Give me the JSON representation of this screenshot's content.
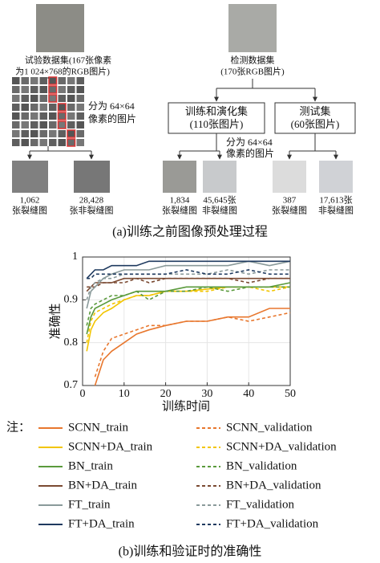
{
  "diagram": {
    "left_dataset": [
      "试验数据集(167张像素",
      "为1 024×768的RGB图片)"
    ],
    "left_split": [
      "分为 64×64",
      "像素的图片"
    ],
    "left_crack": [
      "1,062",
      "张裂缝图"
    ],
    "left_noncrack": [
      "28,428",
      "张非裂缝图"
    ],
    "right_dataset": [
      "检测数据集",
      "(170张RGB图片)"
    ],
    "train_box": [
      "训练和演化集",
      "(110张图片)"
    ],
    "test_box": [
      "测试集",
      "(60张图片)"
    ],
    "right_split": [
      "分为 64×64",
      "像素的图片"
    ],
    "train_crack": [
      "1,834",
      "张裂缝图"
    ],
    "train_noncrack": [
      "45,645张",
      "非裂缝图"
    ],
    "test_crack": [
      "387",
      "张裂缝图"
    ],
    "test_noncrack": [
      "17,613张",
      "非裂缝图"
    ],
    "caption": "(a)训练之前图像预处理过程"
  },
  "chart_data": {
    "type": "line",
    "xlabel": "训练时间",
    "ylabel": "准确性",
    "legend_title": "注：",
    "caption": "(b)训练和验证时的准确性",
    "x": [
      1,
      2,
      3,
      5,
      7,
      10,
      13,
      16,
      20,
      25,
      30,
      35,
      40,
      45,
      50
    ],
    "xlim": [
      0,
      50
    ],
    "xticks": [
      0,
      10,
      20,
      30,
      40,
      50
    ],
    "ylim": [
      0.7,
      1
    ],
    "yticks": [
      0.7,
      0.8,
      0.9,
      1
    ],
    "grid": true,
    "series": [
      {
        "name": "SCNN_train",
        "color": "#e8772e",
        "dashed": false,
        "values": [
          null,
          null,
          0.7,
          0.76,
          0.78,
          0.8,
          0.82,
          0.83,
          0.84,
          0.85,
          0.85,
          0.86,
          0.86,
          0.88,
          0.88
        ]
      },
      {
        "name": "SCNN_validation",
        "color": "#e8772e",
        "dashed": true,
        "values": [
          null,
          null,
          0.72,
          0.78,
          0.81,
          0.82,
          0.83,
          0.84,
          0.84,
          0.85,
          0.85,
          0.86,
          0.85,
          0.86,
          0.87
        ]
      },
      {
        "name": "SCNN+DA_train",
        "color": "#f2c500",
        "dashed": false,
        "values": [
          0.78,
          0.83,
          0.85,
          0.87,
          0.88,
          0.9,
          0.91,
          0.91,
          0.92,
          0.92,
          0.925,
          0.93,
          0.93,
          0.93,
          0.93
        ]
      },
      {
        "name": "SCNN+DA_validation",
        "color": "#f2c500",
        "dashed": true,
        "values": [
          0.8,
          0.85,
          0.87,
          0.88,
          0.89,
          0.9,
          0.91,
          0.91,
          0.92,
          0.92,
          0.92,
          0.93,
          0.93,
          0.92,
          0.93
        ]
      },
      {
        "name": "BN_train",
        "color": "#5a9a3c",
        "dashed": false,
        "values": [
          0.82,
          0.86,
          0.88,
          0.89,
          0.9,
          0.91,
          0.92,
          0.92,
          0.92,
          0.93,
          0.93,
          0.93,
          0.93,
          0.93,
          0.94
        ]
      },
      {
        "name": "BN_validation",
        "color": "#5a9a3c",
        "dashed": true,
        "values": [
          0.84,
          0.88,
          0.89,
          0.9,
          0.91,
          0.91,
          0.92,
          0.9,
          0.92,
          0.92,
          0.93,
          0.92,
          0.93,
          0.93,
          0.93
        ]
      },
      {
        "name": "BN+DA_train",
        "color": "#7b4a32",
        "dashed": false,
        "values": [
          0.92,
          0.93,
          0.94,
          0.94,
          0.94,
          0.95,
          0.95,
          0.95,
          0.95,
          0.95,
          0.95,
          0.95,
          0.95,
          0.95,
          0.95
        ]
      },
      {
        "name": "BN+DA_validation",
        "color": "#7b4a32",
        "dashed": true,
        "values": [
          0.93,
          0.93,
          0.93,
          0.94,
          0.94,
          0.94,
          0.95,
          0.94,
          0.95,
          0.95,
          0.95,
          0.95,
          0.94,
          0.95,
          0.95
        ]
      },
      {
        "name": "FT_train",
        "color": "#8a9a9a",
        "dashed": false,
        "values": [
          0.88,
          0.92,
          0.93,
          0.95,
          0.96,
          0.97,
          0.97,
          0.97,
          0.98,
          0.98,
          0.98,
          0.98,
          0.99,
          0.98,
          0.99
        ]
      },
      {
        "name": "FT_validation",
        "color": "#8a9a9a",
        "dashed": true,
        "values": [
          0.9,
          0.93,
          0.94,
          0.95,
          0.95,
          0.96,
          0.96,
          0.96,
          0.96,
          0.96,
          0.96,
          0.97,
          0.96,
          0.97,
          0.97
        ]
      },
      {
        "name": "FT+DA_train",
        "color": "#1f3a5f",
        "dashed": false,
        "values": [
          0.95,
          0.96,
          0.97,
          0.97,
          0.98,
          0.98,
          0.98,
          0.99,
          0.99,
          0.99,
          0.99,
          0.99,
          0.99,
          0.99,
          0.99
        ]
      },
      {
        "name": "FT+DA_validation",
        "color": "#1f3a5f",
        "dashed": true,
        "values": [
          0.95,
          0.95,
          0.96,
          0.96,
          0.96,
          0.96,
          0.96,
          0.96,
          0.96,
          0.97,
          0.96,
          0.96,
          0.97,
          0.96,
          0.96
        ]
      }
    ]
  }
}
